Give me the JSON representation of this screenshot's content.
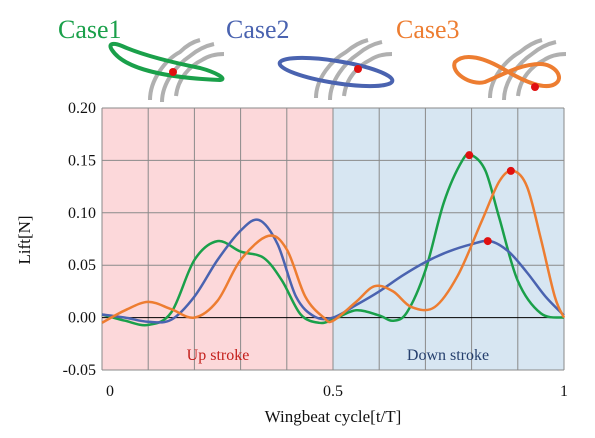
{
  "chart_data": {
    "type": "line",
    "xlabel": "Wingbeat cycle[t/T]",
    "ylabel": "Lift[N]",
    "xlim": [
      0,
      1
    ],
    "ylim": [
      -0.05,
      0.2
    ],
    "x_ticks": [
      "0",
      "0.5",
      "1"
    ],
    "y_ticks": [
      "-0.05",
      "0.00",
      "0.05",
      "0.10",
      "0.15",
      "0.20"
    ],
    "grid": true,
    "regions": [
      {
        "label": "Up stroke",
        "from": 0,
        "to": 0.5,
        "color": "#fcd8da",
        "label_color": "#c4201c"
      },
      {
        "label": "Down stroke",
        "from": 0.5,
        "to": 1,
        "color": "#d7e6f2",
        "label_color": "#26406e"
      }
    ],
    "case_titles": [
      "Case1",
      "Case2",
      "Case3"
    ],
    "series": [
      {
        "name": "Case1",
        "color": "#1aa04a",
        "points": [
          [
            0,
            0.003
          ],
          [
            0.05,
            -0.003
          ],
          [
            0.1,
            -0.007
          ],
          [
            0.15,
            0.005
          ],
          [
            0.2,
            0.055
          ],
          [
            0.25,
            0.073
          ],
          [
            0.3,
            0.063
          ],
          [
            0.35,
            0.057
          ],
          [
            0.39,
            0.035
          ],
          [
            0.43,
            0.003
          ],
          [
            0.47,
            -0.005
          ],
          [
            0.5,
            -0.002
          ],
          [
            0.55,
            0.007
          ],
          [
            0.6,
            0.002
          ],
          [
            0.63,
            -0.003
          ],
          [
            0.66,
            0.005
          ],
          [
            0.7,
            0.045
          ],
          [
            0.74,
            0.11
          ],
          [
            0.78,
            0.15
          ],
          [
            0.8,
            0.155
          ],
          [
            0.83,
            0.14
          ],
          [
            0.86,
            0.095
          ],
          [
            0.9,
            0.035
          ],
          [
            0.95,
            0.004
          ],
          [
            1,
            0.0
          ]
        ],
        "marker": [
          0.795,
          0.155
        ]
      },
      {
        "name": "Case2",
        "color": "#4a63b0",
        "points": [
          [
            0,
            0.003
          ],
          [
            0.05,
            0.0
          ],
          [
            0.1,
            -0.004
          ],
          [
            0.15,
            -0.002
          ],
          [
            0.2,
            0.02
          ],
          [
            0.25,
            0.055
          ],
          [
            0.3,
            0.083
          ],
          [
            0.34,
            0.093
          ],
          [
            0.38,
            0.07
          ],
          [
            0.42,
            0.02
          ],
          [
            0.46,
            0.001
          ],
          [
            0.5,
            0.0
          ],
          [
            0.55,
            0.012
          ],
          [
            0.6,
            0.025
          ],
          [
            0.65,
            0.04
          ],
          [
            0.7,
            0.053
          ],
          [
            0.75,
            0.063
          ],
          [
            0.8,
            0.07
          ],
          [
            0.84,
            0.073
          ],
          [
            0.88,
            0.063
          ],
          [
            0.92,
            0.043
          ],
          [
            0.96,
            0.02
          ],
          [
            1,
            0.002
          ]
        ],
        "marker": [
          0.835,
          0.073
        ]
      },
      {
        "name": "Case3",
        "color": "#ed7d31",
        "points": [
          [
            0,
            -0.005
          ],
          [
            0.05,
            0.007
          ],
          [
            0.1,
            0.015
          ],
          [
            0.15,
            0.008
          ],
          [
            0.2,
            0.0
          ],
          [
            0.25,
            0.016
          ],
          [
            0.3,
            0.055
          ],
          [
            0.36,
            0.078
          ],
          [
            0.4,
            0.065
          ],
          [
            0.44,
            0.02
          ],
          [
            0.48,
            0.0
          ],
          [
            0.5,
            -0.003
          ],
          [
            0.55,
            0.015
          ],
          [
            0.59,
            0.03
          ],
          [
            0.63,
            0.025
          ],
          [
            0.67,
            0.01
          ],
          [
            0.72,
            0.01
          ],
          [
            0.77,
            0.04
          ],
          [
            0.82,
            0.09
          ],
          [
            0.86,
            0.13
          ],
          [
            0.89,
            0.14
          ],
          [
            0.92,
            0.125
          ],
          [
            0.95,
            0.075
          ],
          [
            0.98,
            0.02
          ],
          [
            1,
            0.0
          ]
        ],
        "marker": [
          0.885,
          0.14
        ]
      }
    ],
    "marker_color": "#e01010"
  }
}
